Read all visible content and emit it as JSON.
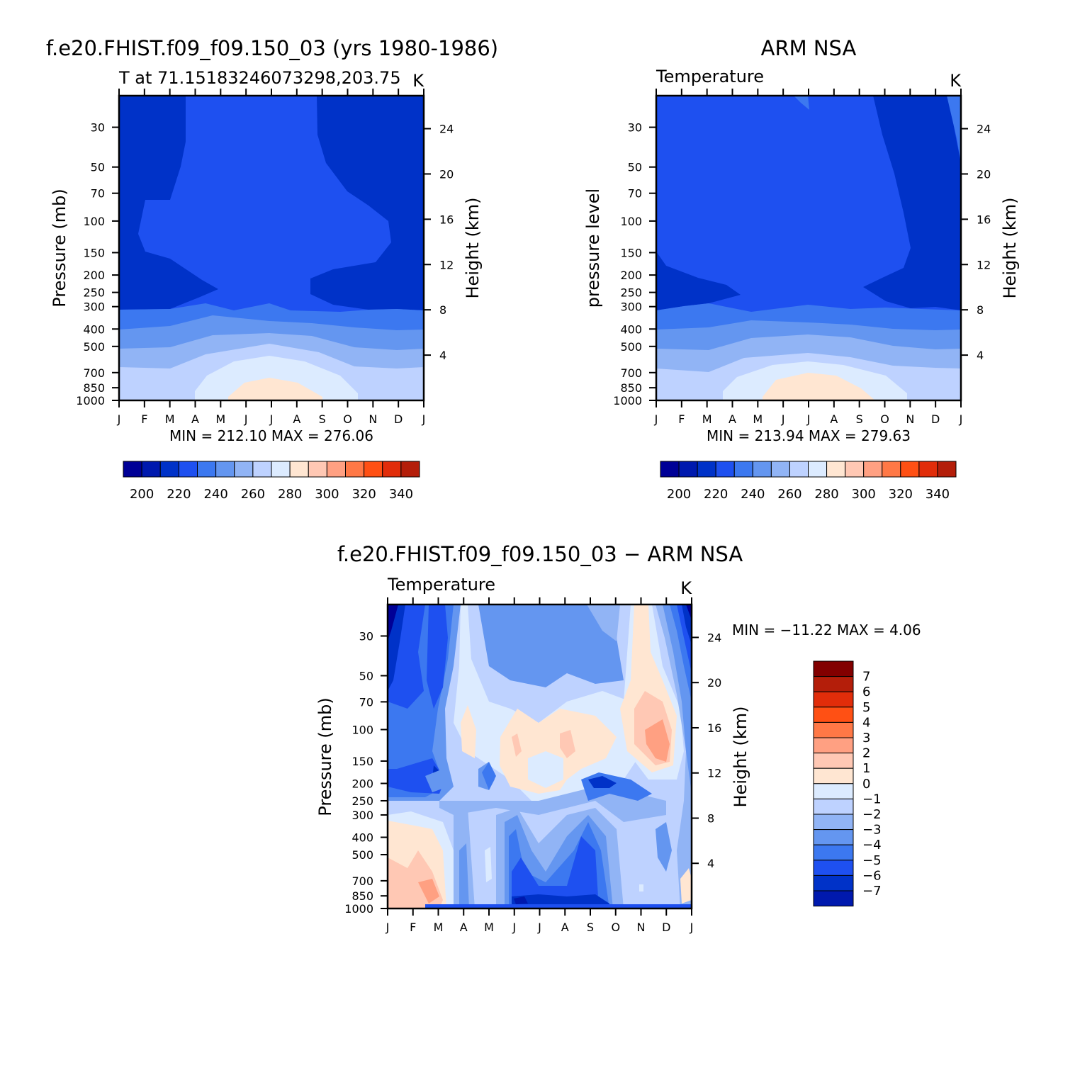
{
  "palette": {
    "levels": [
      "#000096",
      "#0019AE",
      "#0032C8",
      "#1E50F0",
      "#3C78F0",
      "#6496F0",
      "#91B4F5",
      "#BED2FF",
      "#DCEBFF",
      "#FFE6D2",
      "#FFC8B4",
      "#FFA082",
      "#FF7846",
      "#FF5014",
      "#E12D0A",
      "#B41E0A",
      "#820000"
    ]
  },
  "chart_data": [
    {
      "type": "contour",
      "title": "f.e20.FHIST.f09_f09.150_03 (yrs 1980-1986)",
      "subtitle_left": "T at 71.15183246073298,203.75",
      "subtitle_right": "K",
      "ylabel": "Pressure (mb)",
      "y2label": "Height (km)",
      "x_ticks": [
        "J",
        "F",
        "M",
        "A",
        "M",
        "J",
        "J",
        "A",
        "S",
        "O",
        "N",
        "D",
        "J"
      ],
      "y_ticks": [
        "30",
        "50",
        "70",
        "100",
        "150",
        "200",
        "250",
        "300",
        "400",
        "500",
        "700",
        "850",
        "1000"
      ],
      "y2_ticks": [
        "24",
        "20",
        "16",
        "12",
        "8",
        "4"
      ],
      "min_label": "MIN = 212.10 MAX = 276.06",
      "min": 212.1,
      "max": 276.06,
      "colorbar_labels": [
        "200",
        "220",
        "240",
        "260",
        "280",
        "300",
        "320",
        "340"
      ]
    },
    {
      "type": "contour",
      "title": "ARM NSA",
      "subtitle_left": "Temperature",
      "subtitle_right": "K",
      "ylabel": "pressure level",
      "y2label": "Height (km)",
      "x_ticks": [
        "J",
        "F",
        "M",
        "A",
        "M",
        "J",
        "J",
        "A",
        "S",
        "O",
        "N",
        "D",
        "J"
      ],
      "y_ticks": [
        "30",
        "50",
        "70",
        "100",
        "150",
        "200",
        "250",
        "300",
        "400",
        "500",
        "700",
        "850",
        "1000"
      ],
      "y2_ticks": [
        "24",
        "20",
        "16",
        "12",
        "8",
        "4"
      ],
      "min_label": "MIN = 213.94 MAX = 279.63",
      "min": 213.94,
      "max": 279.63,
      "colorbar_labels": [
        "200",
        "220",
        "240",
        "260",
        "280",
        "300",
        "320",
        "340"
      ]
    },
    {
      "type": "contour",
      "title": "f.e20.FHIST.f09_f09.150_03 − ARM NSA",
      "subtitle_left": "Temperature",
      "subtitle_right": "K",
      "ylabel": "Pressure (mb)",
      "y2label": "Height (km)",
      "x_ticks": [
        "J",
        "F",
        "M",
        "A",
        "M",
        "J",
        "J",
        "A",
        "S",
        "O",
        "N",
        "D",
        "J"
      ],
      "y_ticks": [
        "30",
        "50",
        "70",
        "100",
        "150",
        "200",
        "250",
        "300",
        "400",
        "500",
        "700",
        "850",
        "1000"
      ],
      "y2_ticks": [
        "24",
        "20",
        "16",
        "12",
        "8",
        "4"
      ],
      "min_label": "MIN = −11.22 MAX =    4.06",
      "min": -11.22,
      "max": 4.06,
      "colorbar_labels": [
        "7",
        "6",
        "5",
        "4",
        "3",
        "2",
        "1",
        "0",
        "−1",
        "−2",
        "−3",
        "−4",
        "−5",
        "−6",
        "−7"
      ]
    }
  ]
}
